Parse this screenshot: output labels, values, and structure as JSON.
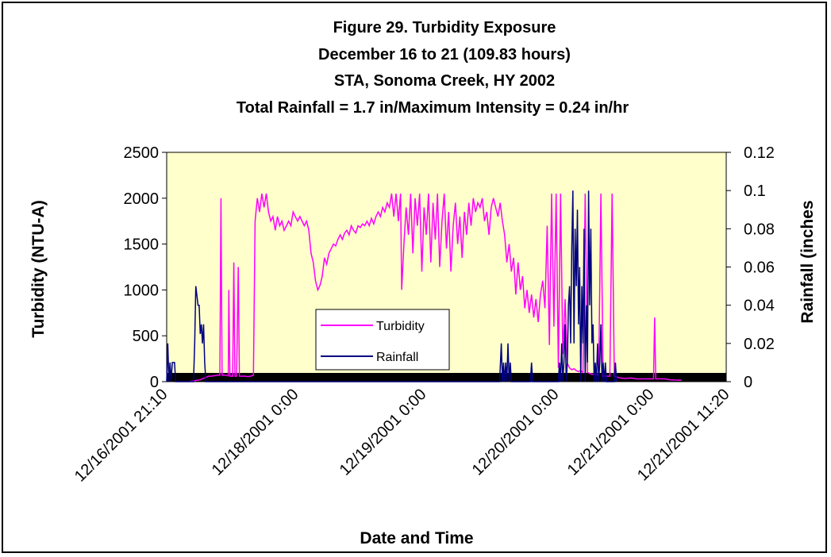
{
  "chart_data": {
    "type": "line",
    "title_lines": [
      "Figure 29.  Turbidity Exposure",
      "December 16 to 21 (109.83 hours)",
      "STA, Sonoma Creek, HY 2002",
      "Total Rainfall = 1.7 in/Maximum Intensity = 0.24 in/hr"
    ],
    "xlabel": "Date and Time",
    "ylabel_left": "Turbidity (NTU-A)",
    "ylabel_right": "Rainfall (inches",
    "x_tick_labels": [
      "12/16/2001 21:10",
      "12/18/2001 0:00",
      "12/19/2001 0:00",
      "12/20/2001 0:00",
      "12/21/2001 0:00",
      "12/21/2001 11:20"
    ],
    "ylim_left": [
      0,
      2500
    ],
    "yticks_left": [
      "0",
      "500",
      "1000",
      "1500",
      "2000",
      "2500"
    ],
    "ylim_right": [
      0,
      0.12
    ],
    "yticks_right": [
      "0",
      "0.02",
      "0.04",
      "0.06",
      "0.08",
      "0.1",
      "0.12"
    ],
    "plot_background": "#ffffcc",
    "legend_placement": "center",
    "series": [
      {
        "name": "Turbidity",
        "axis": "left",
        "color": "#ff00ff",
        "points": [
          [
            0.04,
            0
          ],
          [
            0.05,
            10
          ],
          [
            0.06,
            20
          ],
          [
            0.075,
            60
          ],
          [
            0.08,
            60
          ],
          [
            0.09,
            70
          ],
          [
            0.095,
            70
          ],
          [
            0.097,
            2000
          ],
          [
            0.099,
            70
          ],
          [
            0.105,
            70
          ],
          [
            0.11,
            65
          ],
          [
            0.111,
            1000
          ],
          [
            0.113,
            60
          ],
          [
            0.118,
            60
          ],
          [
            0.12,
            1300
          ],
          [
            0.122,
            60
          ],
          [
            0.125,
            60
          ],
          [
            0.128,
            1250
          ],
          [
            0.13,
            60
          ],
          [
            0.135,
            60
          ],
          [
            0.14,
            60
          ],
          [
            0.145,
            55
          ],
          [
            0.15,
            60
          ],
          [
            0.155,
            70
          ],
          [
            0.158,
            1750
          ],
          [
            0.162,
            2000
          ],
          [
            0.166,
            1850
          ],
          [
            0.17,
            2050
          ],
          [
            0.174,
            1900
          ],
          [
            0.178,
            2050
          ],
          [
            0.182,
            1850
          ],
          [
            0.186,
            1750
          ],
          [
            0.19,
            1800
          ],
          [
            0.194,
            1650
          ],
          [
            0.198,
            1800
          ],
          [
            0.202,
            1700
          ],
          [
            0.206,
            1750
          ],
          [
            0.21,
            1650
          ],
          [
            0.214,
            1700
          ],
          [
            0.218,
            1750
          ],
          [
            0.222,
            1700
          ],
          [
            0.226,
            1850
          ],
          [
            0.23,
            1800
          ],
          [
            0.234,
            1750
          ],
          [
            0.238,
            1800
          ],
          [
            0.242,
            1750
          ],
          [
            0.246,
            1700
          ],
          [
            0.25,
            1750
          ],
          [
            0.254,
            1650
          ],
          [
            0.258,
            1400
          ],
          [
            0.262,
            1300
          ],
          [
            0.266,
            1100
          ],
          [
            0.27,
            1000
          ],
          [
            0.274,
            1050
          ],
          [
            0.278,
            1150
          ],
          [
            0.282,
            1350
          ],
          [
            0.286,
            1280
          ],
          [
            0.29,
            1400
          ],
          [
            0.294,
            1450
          ],
          [
            0.298,
            1500
          ],
          [
            0.302,
            1480
          ],
          [
            0.306,
            1550
          ],
          [
            0.31,
            1600
          ],
          [
            0.314,
            1550
          ],
          [
            0.318,
            1620
          ],
          [
            0.322,
            1650
          ],
          [
            0.326,
            1600
          ],
          [
            0.33,
            1700
          ],
          [
            0.334,
            1650
          ],
          [
            0.338,
            1620
          ],
          [
            0.342,
            1700
          ],
          [
            0.346,
            1680
          ],
          [
            0.35,
            1720
          ],
          [
            0.354,
            1700
          ],
          [
            0.358,
            1750
          ],
          [
            0.362,
            1700
          ],
          [
            0.366,
            1780
          ],
          [
            0.37,
            1720
          ],
          [
            0.374,
            1800
          ],
          [
            0.378,
            1850
          ],
          [
            0.382,
            1800
          ],
          [
            0.386,
            1900
          ],
          [
            0.39,
            1850
          ],
          [
            0.394,
            1950
          ],
          [
            0.398,
            1900
          ],
          [
            0.402,
            2050
          ],
          [
            0.406,
            1800
          ],
          [
            0.41,
            2050
          ],
          [
            0.414,
            1750
          ],
          [
            0.418,
            2050
          ],
          [
            0.42,
            1000
          ],
          [
            0.424,
            1500
          ],
          [
            0.428,
            1900
          ],
          [
            0.432,
            1600
          ],
          [
            0.436,
            2050
          ],
          [
            0.44,
            1400
          ],
          [
            0.444,
            2000
          ],
          [
            0.448,
            1700
          ],
          [
            0.452,
            2050
          ],
          [
            0.456,
            1200
          ],
          [
            0.46,
            1900
          ],
          [
            0.464,
            1600
          ],
          [
            0.468,
            2050
          ],
          [
            0.472,
            1300
          ],
          [
            0.476,
            1950
          ],
          [
            0.48,
            1550
          ],
          [
            0.484,
            2050
          ],
          [
            0.488,
            1250
          ],
          [
            0.492,
            1750
          ],
          [
            0.496,
            2050
          ],
          [
            0.5,
            1450
          ],
          [
            0.504,
            1850
          ],
          [
            0.508,
            1200
          ],
          [
            0.512,
            1700
          ],
          [
            0.516,
            1950
          ],
          [
            0.52,
            1500
          ],
          [
            0.524,
            1800
          ],
          [
            0.528,
            1350
          ],
          [
            0.532,
            1850
          ],
          [
            0.536,
            1600
          ],
          [
            0.54,
            1950
          ],
          [
            0.544,
            1700
          ],
          [
            0.548,
            2000
          ],
          [
            0.552,
            1850
          ],
          [
            0.556,
            1950
          ],
          [
            0.56,
            1900
          ],
          [
            0.564,
            2000
          ],
          [
            0.568,
            1750
          ],
          [
            0.572,
            1850
          ],
          [
            0.576,
            1600
          ],
          [
            0.58,
            1900
          ],
          [
            0.584,
            2000
          ],
          [
            0.588,
            1900
          ],
          [
            0.592,
            1800
          ],
          [
            0.596,
            1950
          ],
          [
            0.6,
            1750
          ],
          [
            0.604,
            1600
          ],
          [
            0.608,
            1300
          ],
          [
            0.612,
            1500
          ],
          [
            0.616,
            1200
          ],
          [
            0.62,
            1350
          ],
          [
            0.624,
            950
          ],
          [
            0.628,
            1300
          ],
          [
            0.632,
            1000
          ],
          [
            0.636,
            1150
          ],
          [
            0.64,
            800
          ],
          [
            0.644,
            1000
          ],
          [
            0.648,
            750
          ],
          [
            0.652,
            950
          ],
          [
            0.656,
            700
          ],
          [
            0.66,
            900
          ],
          [
            0.664,
            650
          ],
          [
            0.668,
            950
          ],
          [
            0.672,
            1100
          ],
          [
            0.676,
            800
          ],
          [
            0.68,
            1700
          ],
          [
            0.684,
            400
          ],
          [
            0.688,
            2050
          ],
          [
            0.692,
            600
          ],
          [
            0.696,
            2050
          ],
          [
            0.7,
            150
          ],
          [
            0.704,
            2050
          ],
          [
            0.708,
            300
          ],
          [
            0.712,
            900
          ],
          [
            0.716,
            200
          ],
          [
            0.72,
            150
          ],
          [
            0.724,
            130
          ],
          [
            0.728,
            140
          ],
          [
            0.732,
            120
          ],
          [
            0.736,
            110
          ],
          [
            0.74,
            120
          ],
          [
            0.744,
            100
          ],
          [
            0.748,
            2050
          ],
          [
            0.752,
            100
          ],
          [
            0.756,
            90
          ],
          [
            0.76,
            80
          ],
          [
            0.764,
            80
          ],
          [
            0.768,
            70
          ],
          [
            0.772,
            80
          ],
          [
            0.776,
            2050
          ],
          [
            0.78,
            60
          ],
          [
            0.784,
            60
          ],
          [
            0.788,
            60
          ],
          [
            0.792,
            60
          ],
          [
            0.796,
            2050
          ],
          [
            0.8,
            60
          ],
          [
            0.805,
            50
          ],
          [
            0.81,
            40
          ],
          [
            0.82,
            35
          ],
          [
            0.83,
            40
          ],
          [
            0.84,
            30
          ],
          [
            0.85,
            30
          ],
          [
            0.86,
            30
          ],
          [
            0.87,
            30
          ],
          [
            0.872,
            700
          ],
          [
            0.874,
            30
          ],
          [
            0.88,
            30
          ],
          [
            0.89,
            30
          ],
          [
            0.9,
            20
          ],
          [
            0.92,
            15
          ]
        ]
      },
      {
        "name": "Rainfall",
        "axis": "right",
        "color": "#000080",
        "points": [
          [
            0.0,
            0
          ],
          [
            0.002,
            0.02
          ],
          [
            0.004,
            0
          ],
          [
            0.006,
            0.01
          ],
          [
            0.008,
            0
          ],
          [
            0.01,
            0.01
          ],
          [
            0.014,
            0.01
          ],
          [
            0.016,
            0
          ],
          [
            0.048,
            0
          ],
          [
            0.05,
            0.02
          ],
          [
            0.052,
            0.05
          ],
          [
            0.054,
            0.045
          ],
          [
            0.056,
            0.04
          ],
          [
            0.058,
            0.04
          ],
          [
            0.06,
            0.025
          ],
          [
            0.062,
            0.03
          ],
          [
            0.064,
            0.02
          ],
          [
            0.066,
            0.03
          ],
          [
            0.068,
            0.01
          ],
          [
            0.07,
            0
          ],
          [
            0.595,
            0
          ],
          [
            0.598,
            0.02
          ],
          [
            0.6,
            0
          ],
          [
            0.602,
            0.01
          ],
          [
            0.604,
            0
          ],
          [
            0.606,
            0.01
          ],
          [
            0.608,
            0
          ],
          [
            0.61,
            0.02
          ],
          [
            0.612,
            0
          ],
          [
            0.614,
            0.01
          ],
          [
            0.616,
            0
          ],
          [
            0.65,
            0
          ],
          [
            0.652,
            0.01
          ],
          [
            0.654,
            0
          ],
          [
            0.7,
            0
          ],
          [
            0.702,
            0.01
          ],
          [
            0.704,
            0
          ],
          [
            0.706,
            0.02
          ],
          [
            0.708,
            0
          ],
          [
            0.71,
            0.01
          ],
          [
            0.712,
            0.03
          ],
          [
            0.714,
            0
          ],
          [
            0.716,
            0.01
          ],
          [
            0.718,
            0.04
          ],
          [
            0.72,
            0.05
          ],
          [
            0.722,
            0.02
          ],
          [
            0.724,
            0.07
          ],
          [
            0.726,
            0.1
          ],
          [
            0.728,
            0.02
          ],
          [
            0.73,
            0.08
          ],
          [
            0.732,
            0.05
          ],
          [
            0.734,
            0.09
          ],
          [
            0.736,
            0.03
          ],
          [
            0.738,
            0.06
          ],
          [
            0.74,
            0
          ],
          [
            0.742,
            0.05
          ],
          [
            0.744,
            0.02
          ],
          [
            0.746,
            0.08
          ],
          [
            0.748,
            0
          ],
          [
            0.75,
            0.04
          ],
          [
            0.752,
            0.01
          ],
          [
            0.754,
            0.1
          ],
          [
            0.756,
            0.04
          ],
          [
            0.758,
            0.08
          ],
          [
            0.76,
            0.02
          ],
          [
            0.762,
            0.03
          ],
          [
            0.764,
            0
          ],
          [
            0.766,
            0.01
          ],
          [
            0.768,
            0
          ],
          [
            0.77,
            0.02
          ],
          [
            0.772,
            0
          ],
          [
            0.774,
            0.01
          ],
          [
            0.776,
            0.03
          ],
          [
            0.778,
            0
          ],
          [
            0.78,
            0.01
          ],
          [
            0.782,
            0
          ],
          [
            0.784,
            0.01
          ],
          [
            0.786,
            0
          ],
          [
            0.8,
            0
          ],
          [
            0.802,
            0.01
          ],
          [
            0.804,
            0
          ]
        ]
      }
    ]
  }
}
